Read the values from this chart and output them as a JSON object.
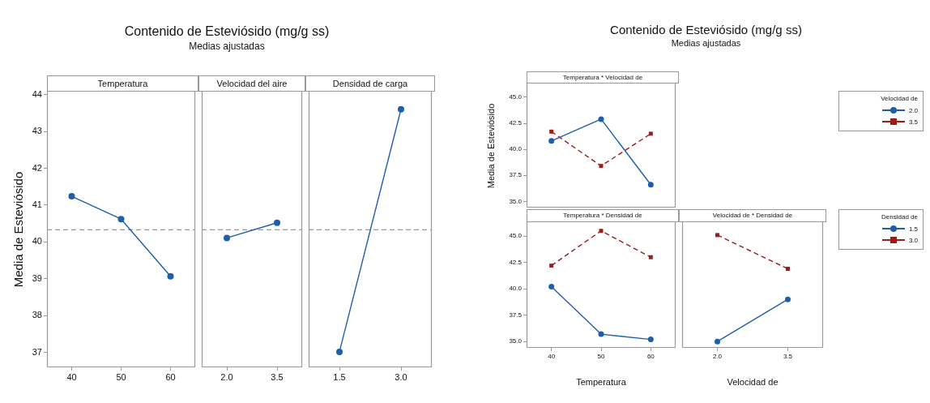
{
  "chart_data": [
    {
      "type": "line",
      "ylabel": "Media de Esteviósido",
      "annotations": [
        "Temperatura"
      ],
      "categories": [
        "40",
        "50",
        "60"
      ],
      "series": [
        {
          "color": "#1f5fa8",
          "marker": "circle",
          "line_style": "solid",
          "values": [
            41.24,
            40.62,
            39.07
          ]
        }
      ],
      "ylim": [
        36.6,
        44.1
      ],
      "yticks": [
        37,
        38,
        39,
        40,
        41,
        42,
        43,
        44
      ],
      "ref_lines": [
        {
          "axis": "y",
          "value": 40.33,
          "color": "#999999",
          "line_style": "dashed"
        }
      ]
    },
    {
      "type": "line",
      "title": "Contenido de Esteviósido (mg/g ss)",
      "subtitle": "Medias ajustadas",
      "annotations": [
        "Velocidad del aire"
      ],
      "categories": [
        "2.0",
        "3.5"
      ],
      "series": [
        {
          "color": "#1f5fa8",
          "marker": "circle",
          "line_style": "solid",
          "values": [
            40.11,
            40.52
          ]
        }
      ],
      "ylim": [
        36.6,
        44.1
      ],
      "tick_labels": "x",
      "ref_lines": [
        {
          "axis": "y",
          "value": 40.33,
          "color": "#999999",
          "line_style": "dashed"
        }
      ]
    },
    {
      "type": "line",
      "annotations": [
        "Densidad de carga"
      ],
      "categories": [
        "1.5",
        "3.0"
      ],
      "series": [
        {
          "color": "#1f5fa8",
          "marker": "circle",
          "line_style": "solid",
          "values": [
            37.02,
            43.6
          ]
        }
      ],
      "ylim": [
        36.6,
        44.1
      ],
      "tick_labels": "x",
      "ref_lines": [
        {
          "axis": "y",
          "value": 40.33,
          "color": "#999999",
          "line_style": "dashed"
        }
      ]
    },
    {
      "type": "line",
      "title": "Contenido de Esteviósido (mg/g ss)",
      "subtitle": "Medias ajustadas",
      "ylabel": "Media de Esteviósido",
      "annotations": [
        "Temperatura * Velocidad de"
      ],
      "categories": [
        "40",
        "50",
        "60"
      ],
      "series": [
        {
          "name": "2.0",
          "color": "#1f5fa8",
          "marker": "circle",
          "line_style": "solid",
          "values": [
            40.8,
            42.9,
            36.6
          ]
        },
        {
          "name": "3.5",
          "color": "#9b1c1c",
          "marker": "square",
          "line_style": "dashed",
          "values": [
            41.7,
            38.4,
            41.5
          ]
        }
      ],
      "ylim": [
        34.4,
        46.4
      ],
      "yticks": [
        {
          "value": 35,
          "label": "35.0"
        },
        {
          "value": 37.5,
          "label": "37.5"
        },
        {
          "value": 40,
          "label": "40.0"
        },
        {
          "value": 42.5,
          "label": "42.5"
        },
        {
          "value": 45,
          "label": "45.0"
        }
      ],
      "tick_labels": "y",
      "legend": "right",
      "legend_title": "Velocidad de"
    },
    {
      "type": "line",
      "xlabel": "Temperatura",
      "annotations": [
        "Temperatura * Densidad de"
      ],
      "categories": [
        "40",
        "50",
        "60"
      ],
      "series": [
        {
          "color": "#1f5fa8",
          "marker": "circle",
          "line_style": "solid",
          "values": [
            40.2,
            35.7,
            35.2
          ]
        },
        {
          "color": "#9b1c1c",
          "marker": "square",
          "line_style": "dashed",
          "values": [
            42.2,
            45.5,
            43.0
          ]
        }
      ],
      "ylim": [
        34.4,
        46.4
      ],
      "yticks": [
        {
          "value": 35,
          "label": "35.0"
        },
        {
          "value": 37.5,
          "label": "37.5"
        },
        {
          "value": 40,
          "label": "40.0"
        },
        {
          "value": 42.5,
          "label": "42.5"
        },
        {
          "value": 45,
          "label": "45.0"
        }
      ]
    },
    {
      "type": "line",
      "xlabel": "Velocidad de",
      "annotations": [
        "Velocidad de * Densidad de"
      ],
      "categories": [
        "2.0",
        "3.5"
      ],
      "series": [
        {
          "name": "1.5",
          "color": "#1f5fa8",
          "marker": "circle",
          "line_style": "solid",
          "values": [
            35.0,
            39.0
          ]
        },
        {
          "name": "3.0",
          "color": "#9b1c1c",
          "marker": "square",
          "line_style": "dashed",
          "values": [
            45.1,
            41.9
          ]
        }
      ],
      "ylim": [
        34.4,
        46.4
      ],
      "tick_labels": "x",
      "legend": "right",
      "legend_title": "Densidad de"
    }
  ]
}
